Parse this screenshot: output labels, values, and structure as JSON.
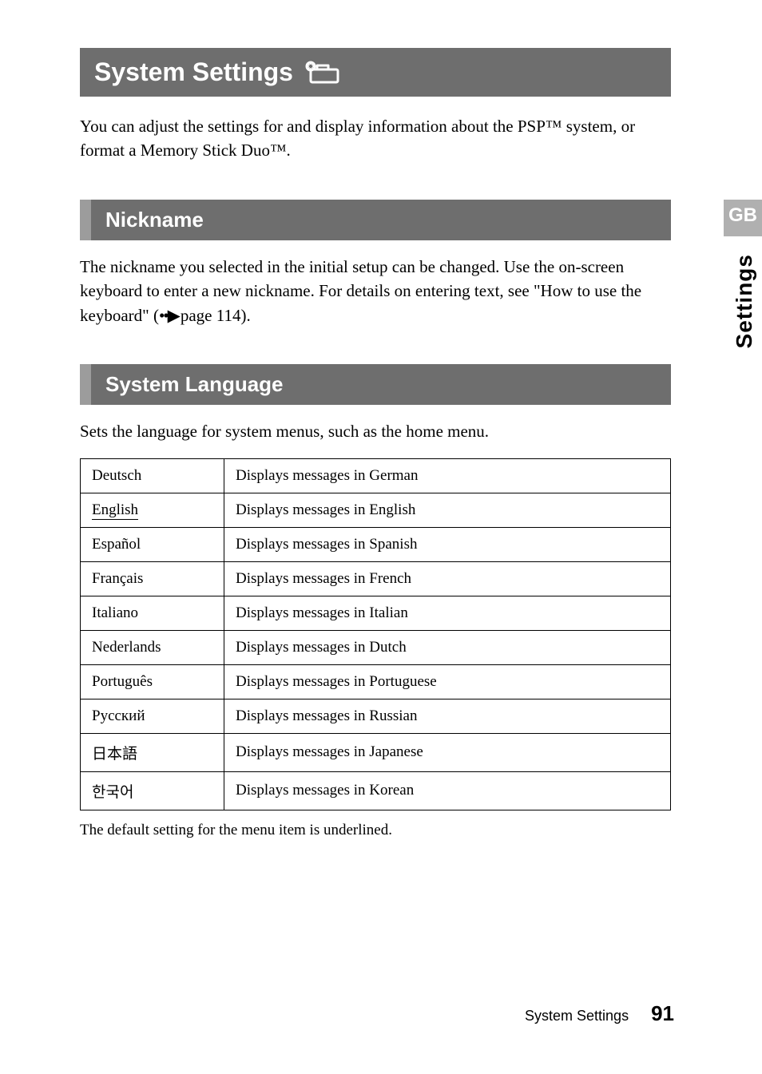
{
  "title_bar": {
    "text": "System Settings"
  },
  "icon": {
    "stroke": "#ffffff",
    "width": 46,
    "height": 32
  },
  "intro": "You can adjust the settings for and display information about the PSP™ system, or format a Memory Stick Duo™.",
  "sections": {
    "nickname": {
      "heading": "Nickname",
      "body_pre": "The nickname you selected in the initial setup can be changed. Use the on-screen keyboard to enter a new nickname. For details on entering text, see \"How to use the keyboard\" (",
      "page_ref": "page 114",
      "body_post": ")."
    },
    "system_language": {
      "heading": "System Language",
      "body": "Sets the language for system menus, such as the home menu.",
      "default_index": 1,
      "rows": [
        {
          "lang": "Deutsch",
          "desc": "Displays messages in German"
        },
        {
          "lang": "English",
          "desc": "Displays messages in English"
        },
        {
          "lang": "Español",
          "desc": "Displays messages in Spanish"
        },
        {
          "lang": "Français",
          "desc": "Displays messages in French"
        },
        {
          "lang": "Italiano",
          "desc": "Displays messages in Italian"
        },
        {
          "lang": "Nederlands",
          "desc": "Displays messages in Dutch"
        },
        {
          "lang": "Português",
          "desc": "Displays messages in Portuguese"
        },
        {
          "lang": "Русский",
          "desc": "Displays messages in Russian"
        },
        {
          "lang": "日本語",
          "desc": "Displays messages in Japanese"
        },
        {
          "lang": "한국어",
          "desc": "Displays messages in Korean"
        }
      ],
      "footnote": "The default setting for the menu item is underlined."
    }
  },
  "side": {
    "tab": "GB",
    "vertical_label": "Settings"
  },
  "footer": {
    "section": "System Settings",
    "page": "91"
  },
  "colors": {
    "bar_bg": "#6e6e6e",
    "bar_accent": "#9c9c9c",
    "tab_bg": "#b0b0b0",
    "text": "#000000",
    "bar_text": "#ffffff"
  }
}
